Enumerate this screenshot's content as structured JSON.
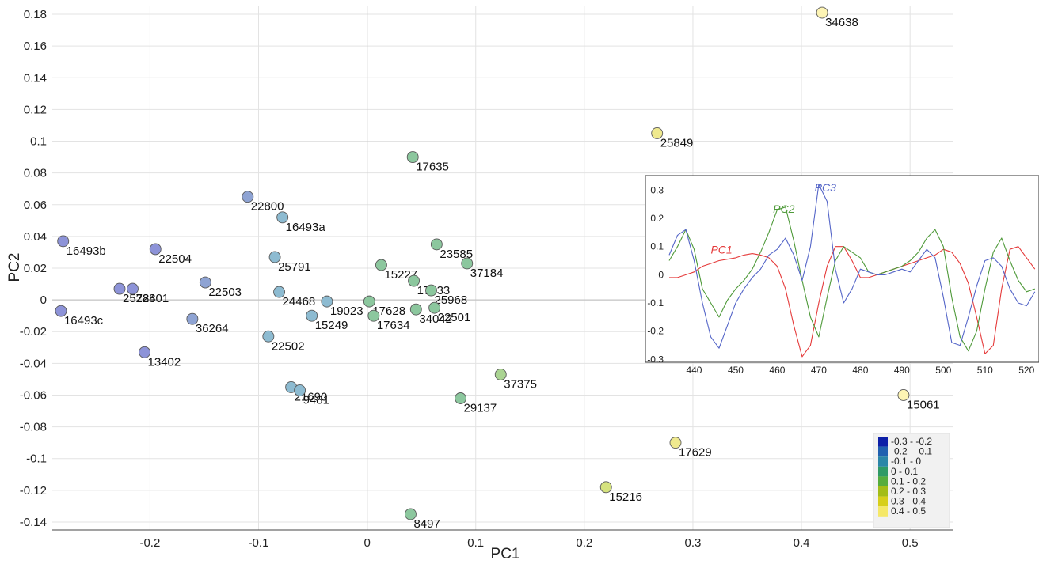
{
  "chart_data": [
    {
      "type": "scatter",
      "xlabel": "PC1",
      "ylabel": "PC2",
      "xlim": [
        -0.29,
        0.54
      ],
      "ylim": [
        -0.145,
        0.185
      ],
      "grid": true,
      "xticks": [
        -0.2,
        -0.1,
        0,
        0.1,
        0.2,
        0.3,
        0.4,
        0.5
      ],
      "xtick_labels": [
        "-0.2",
        "-0.1",
        "0",
        "0.1",
        "0.2",
        "0.3",
        "0.4",
        "0.5"
      ],
      "yticks": [
        0.18,
        0.16,
        0.14,
        0.12,
        0.1,
        0.08,
        0.06,
        0.04,
        0.02,
        0,
        -0.02,
        -0.04,
        -0.06,
        -0.08,
        -0.1,
        -0.12,
        -0.14
      ],
      "ytick_labels": [
        "0.18",
        "0.16",
        "0.14",
        "0.12",
        "0.1",
        "0.08",
        "0.06",
        "0.04",
        "0.02",
        "0",
        "-0.02",
        "-0.04",
        "-0.06",
        "-0.08",
        "-0.1",
        "-0.12",
        "-0.14"
      ],
      "color_bins": [
        {
          "label": "-0.3 - -0.2",
          "color": "#0d1fa8"
        },
        {
          "label": "-0.2 - -0.1",
          "color": "#2060b0"
        },
        {
          "label": "-0.1 - 0",
          "color": "#2b86a8"
        },
        {
          "label": "0 - 0.1",
          "color": "#2f9a66"
        },
        {
          "label": "0.1 - 0.2",
          "color": "#56ad3d"
        },
        {
          "label": "0.2 - 0.3",
          "color": "#a3bd18"
        },
        {
          "label": "0.3 - 0.4",
          "color": "#d7cf1b"
        },
        {
          "label": "0.4 - 0.5",
          "color": "#f5e868"
        }
      ],
      "points": [
        {
          "label": "34638",
          "x": 0.419,
          "y": 0.181,
          "bin": 7
        },
        {
          "label": "25849",
          "x": 0.267,
          "y": 0.105,
          "bin": 6
        },
        {
          "label": "17635",
          "x": 0.042,
          "y": 0.09,
          "bin": 3
        },
        {
          "label": "22800",
          "x": -0.11,
          "y": 0.065,
          "bin": 1
        },
        {
          "label": "16493a",
          "x": -0.078,
          "y": 0.052,
          "bin": 2
        },
        {
          "label": "16493b",
          "x": -0.28,
          "y": 0.037,
          "bin": 0
        },
        {
          "label": "22504",
          "x": -0.195,
          "y": 0.032,
          "bin": 0
        },
        {
          "label": "23585",
          "x": 0.064,
          "y": 0.035,
          "bin": 3
        },
        {
          "label": "25791",
          "x": -0.085,
          "y": 0.027,
          "bin": 2
        },
        {
          "label": "15227",
          "x": 0.013,
          "y": 0.022,
          "bin": 3
        },
        {
          "label": "37184",
          "x": 0.092,
          "y": 0.023,
          "bin": 3
        },
        {
          "label": "17633",
          "x": 0.043,
          "y": 0.012,
          "bin": 3
        },
        {
          "label": "22503",
          "x": -0.149,
          "y": 0.011,
          "bin": 1
        },
        {
          "label": "25784",
          "x": -0.228,
          "y": 0.007,
          "bin": 0
        },
        {
          "label": "22801",
          "x": -0.216,
          "y": 0.007,
          "bin": 0
        },
        {
          "label": "25968",
          "x": 0.059,
          "y": 0.006,
          "bin": 3
        },
        {
          "label": "24468",
          "x": -0.081,
          "y": 0.005,
          "bin": 2
        },
        {
          "label": "19023",
          "x": -0.037,
          "y": -0.001,
          "bin": 2
        },
        {
          "label": "17628",
          "x": 0.002,
          "y": -0.001,
          "bin": 3
        },
        {
          "label": "16493c",
          "x": -0.282,
          "y": -0.007,
          "bin": 0
        },
        {
          "label": "22501",
          "x": 0.062,
          "y": -0.005,
          "bin": 3
        },
        {
          "label": "34042",
          "x": 0.045,
          "y": -0.006,
          "bin": 3
        },
        {
          "label": "15249",
          "x": -0.051,
          "y": -0.01,
          "bin": 2
        },
        {
          "label": "17634",
          "x": 0.006,
          "y": -0.01,
          "bin": 3
        },
        {
          "label": "36264",
          "x": -0.161,
          "y": -0.012,
          "bin": 1
        },
        {
          "label": "22502",
          "x": -0.091,
          "y": -0.023,
          "bin": 2
        },
        {
          "label": "13402",
          "x": -0.205,
          "y": -0.033,
          "bin": 0
        },
        {
          "label": "37375",
          "x": 0.123,
          "y": -0.047,
          "bin": 4
        },
        {
          "label": "21690",
          "x": -0.07,
          "y": -0.055,
          "bin": 2
        },
        {
          "label": "9481",
          "x": -0.062,
          "y": -0.057,
          "bin": 2
        },
        {
          "label": "29137",
          "x": 0.086,
          "y": -0.062,
          "bin": 3
        },
        {
          "label": "15061",
          "x": 0.494,
          "y": -0.06,
          "bin": 7
        },
        {
          "label": "17629",
          "x": 0.284,
          "y": -0.09,
          "bin": 6
        },
        {
          "label": "15216",
          "x": 0.22,
          "y": -0.118,
          "bin": 5
        },
        {
          "label": "8497",
          "x": 0.04,
          "y": -0.135,
          "bin": 3
        }
      ]
    },
    {
      "type": "line",
      "inset": true,
      "xlim": [
        434,
        523
      ],
      "ylim": [
        -0.31,
        0.34
      ],
      "xticks": [
        440,
        450,
        460,
        470,
        480,
        490,
        500,
        510,
        520
      ],
      "xtick_labels": [
        "440",
        "450",
        "460",
        "470",
        "480",
        "490",
        "500",
        "510",
        "520"
      ],
      "yticks": [
        0.3,
        0.2,
        0.1,
        0,
        -0.1,
        -0.2,
        -0.3
      ],
      "ytick_labels": [
        "0.3",
        "0.2",
        "0.1",
        "0",
        "-0.1",
        "-0.2",
        "-0.3"
      ],
      "x": [
        434,
        436,
        438,
        440,
        442,
        444,
        446,
        448,
        450,
        452,
        454,
        456,
        458,
        460,
        462,
        464,
        466,
        468,
        470,
        472,
        474,
        476,
        478,
        480,
        482,
        484,
        486,
        488,
        490,
        492,
        494,
        496,
        498,
        500,
        502,
        504,
        506,
        508,
        510,
        512,
        514,
        516,
        518,
        520,
        522
      ],
      "series": [
        {
          "name": "PC1",
          "color": "#e53a3a",
          "label_at": [
            444,
            0.075
          ],
          "values": [
            -0.01,
            -0.01,
            0,
            0.01,
            0.03,
            0.04,
            0.05,
            0.055,
            0.06,
            0.07,
            0.075,
            0.07,
            0.06,
            0.03,
            -0.05,
            -0.18,
            -0.29,
            -0.25,
            -0.1,
            0.03,
            0.1,
            0.1,
            0.05,
            -0.01,
            -0.01,
            0.0,
            0.01,
            0.02,
            0.03,
            0.04,
            0.05,
            0.06,
            0.07,
            0.09,
            0.08,
            0.04,
            -0.03,
            -0.15,
            -0.28,
            -0.25,
            -0.05,
            0.09,
            0.1,
            0.06,
            0.02
          ]
        },
        {
          "name": "PC2",
          "color": "#4f9a3a",
          "label_at": [
            459,
            0.22
          ],
          "values": [
            0.05,
            0.1,
            0.16,
            0.09,
            -0.05,
            -0.1,
            -0.15,
            -0.09,
            -0.05,
            -0.02,
            0.02,
            0.08,
            0.15,
            0.23,
            0.24,
            0.12,
            -0.02,
            -0.15,
            -0.22,
            -0.08,
            0.05,
            0.1,
            0.08,
            0.06,
            0.01,
            0.0,
            0.01,
            0.02,
            0.03,
            0.05,
            0.08,
            0.13,
            0.16,
            0.1,
            -0.08,
            -0.22,
            -0.27,
            -0.2,
            -0.05,
            0.08,
            0.13,
            0.05,
            -0.02,
            -0.06,
            -0.05
          ]
        },
        {
          "name": "PC3",
          "color": "#5566c8",
          "label_at": [
            469,
            0.295
          ],
          "values": [
            0.07,
            0.14,
            0.16,
            0.05,
            -0.1,
            -0.22,
            -0.26,
            -0.18,
            -0.1,
            -0.05,
            -0.01,
            0.02,
            0.07,
            0.09,
            0.13,
            0.07,
            -0.02,
            0.1,
            0.32,
            0.26,
            0.02,
            -0.1,
            -0.05,
            0.02,
            0.01,
            0.0,
            0.0,
            0.01,
            0.02,
            0.01,
            0.05,
            0.09,
            0.06,
            -0.08,
            -0.24,
            -0.25,
            -0.15,
            -0.04,
            0.05,
            0.06,
            0.03,
            -0.05,
            -0.1,
            -0.11,
            -0.06
          ]
        }
      ]
    }
  ]
}
